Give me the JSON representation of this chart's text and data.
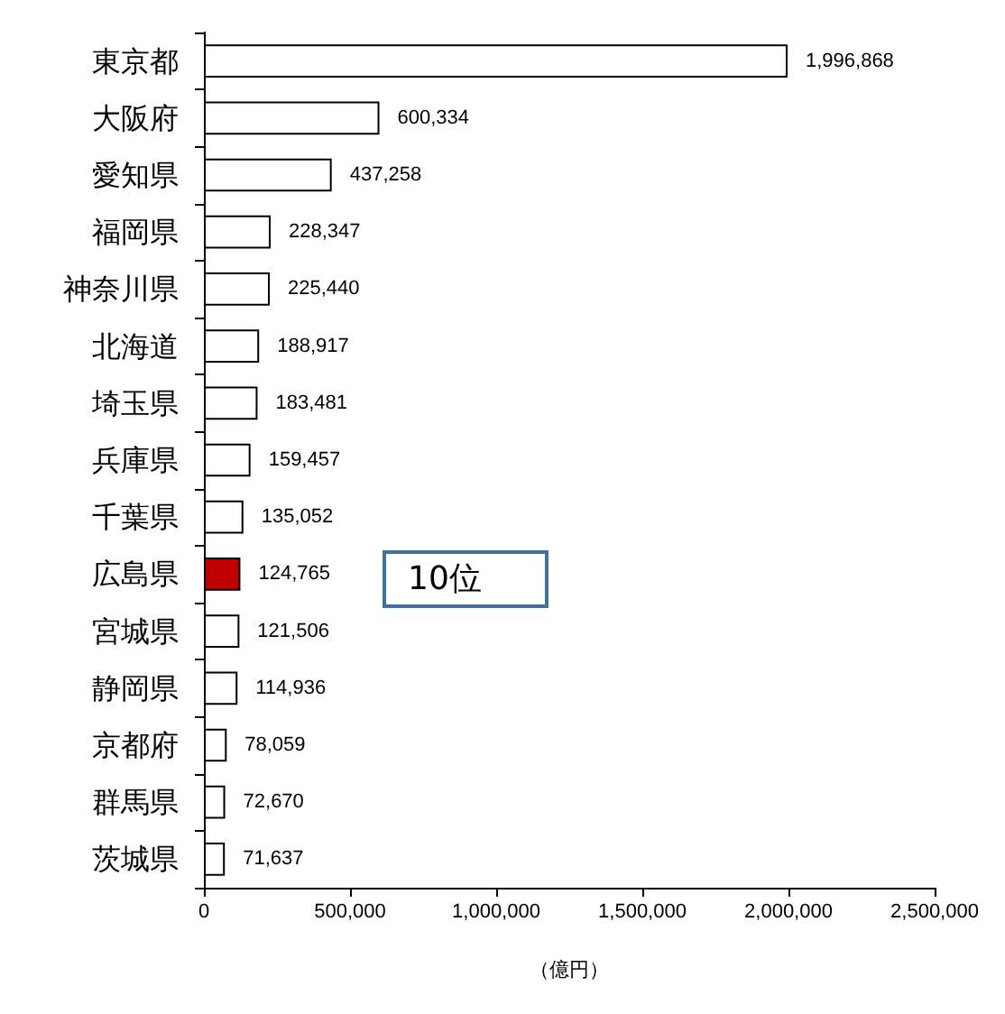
{
  "chart_data": {
    "type": "bar",
    "orientation": "horizontal",
    "xlabel": "（億円）",
    "categories": [
      "東京都",
      "大阪府",
      "愛知県",
      "福岡県",
      "神奈川県",
      "北海道",
      "埼玉県",
      "兵庫県",
      "千葉県",
      "広島県",
      "宮城県",
      "静岡県",
      "京都府",
      "群馬県",
      "茨城県"
    ],
    "values": [
      1996868,
      600334,
      437258,
      228347,
      225440,
      188917,
      183481,
      159457,
      135052,
      124765,
      121506,
      114936,
      78059,
      72670,
      71637
    ],
    "colors": [
      "#ffffff",
      "#ffffff",
      "#ffffff",
      "#ffffff",
      "#ffffff",
      "#ffffff",
      "#ffffff",
      "#ffffff",
      "#ffffff",
      "#c00000",
      "#ffffff",
      "#ffffff",
      "#ffffff",
      "#ffffff",
      "#ffffff"
    ],
    "xlim": [
      0,
      2500000
    ],
    "xticks": [
      {
        "value": 0,
        "label": "0"
      },
      {
        "value": 500000,
        "label": "500,000"
      },
      {
        "value": 1000000,
        "label": "1,000,000"
      },
      {
        "value": 1500000,
        "label": "1,500,000"
      },
      {
        "value": 2000000,
        "label": "2,000,000"
      },
      {
        "value": 2500000,
        "label": "2,500,000"
      }
    ],
    "value_labels": [
      "1,996,868",
      "600,334",
      "437,258",
      "228,347",
      "225,440",
      "188,917",
      "183,481",
      "159,457",
      "135,052",
      "124,765",
      "121,506",
      "114,936",
      "78,059",
      "72,670",
      "71,637"
    ],
    "grid": false,
    "annotations": [
      "10位"
    ]
  }
}
